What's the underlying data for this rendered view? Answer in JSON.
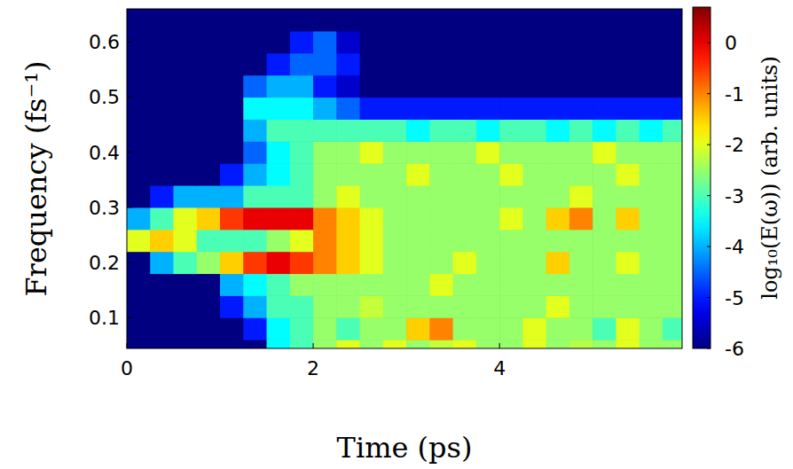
{
  "chart_data": {
    "type": "heatmap",
    "x_label": "Time (ps)",
    "y_label": "Frequency (fs⁻¹)",
    "xlim": [
      0,
      5.96
    ],
    "ylim": [
      0.044,
      0.66
    ],
    "xticks": [
      0,
      2,
      4
    ],
    "yticks": [
      0.1,
      0.2,
      0.3,
      0.4,
      0.5,
      0.6
    ],
    "x_bins": [
      0,
      0.25,
      0.5,
      0.75,
      1,
      1.25,
      1.5,
      1.75,
      2,
      2.25,
      2.5,
      2.75,
      3,
      3.25,
      3.5,
      3.75,
      4,
      4.25,
      4.5,
      4.75,
      5,
      5.25,
      5.5,
      5.75,
      6
    ],
    "y_bins": [
      0.02,
      0.06,
      0.1,
      0.14,
      0.18,
      0.22,
      0.26,
      0.3,
      0.34,
      0.38,
      0.42,
      0.46,
      0.5,
      0.54,
      0.58,
      0.62,
      0.66
    ],
    "values": [
      [
        -6,
        -6,
        -6,
        -6,
        -6,
        -6,
        -3.5,
        -3,
        -2.5,
        -2,
        -2.5,
        -2,
        -2.5,
        -2.2,
        -2,
        -2.5,
        -2.5,
        -2,
        -2.5,
        -2.3,
        -2.5,
        -2,
        -2.5,
        -2.5
      ],
      [
        -6,
        -6,
        -6,
        -6,
        -6,
        -5,
        -3.5,
        -3,
        -2.5,
        -3,
        -2.5,
        -2.5,
        -1.5,
        -1,
        -2.5,
        -2.5,
        -2.5,
        -2,
        -2.5,
        -2.5,
        -3,
        -2,
        -2.5,
        -3
      ],
      [
        -6,
        -6,
        -6,
        -6,
        -5,
        -4,
        -3,
        -3,
        -2.5,
        -2.5,
        -2.2,
        -2.5,
        -2.5,
        -2.5,
        -2.5,
        -2.5,
        -2.5,
        -2.5,
        -2,
        -2.5,
        -2.5,
        -2.5,
        -2.5,
        -2.5
      ],
      [
        -6,
        -6,
        -6,
        -6,
        -4,
        -3.5,
        -3,
        -2.5,
        -2.5,
        -2.5,
        -2.5,
        -2.5,
        -2.5,
        -2,
        -2.5,
        -2.5,
        -2.5,
        -2.5,
        -2.5,
        -2.5,
        -2.5,
        -2.5,
        -2.5,
        -2.5
      ],
      [
        -6,
        -4,
        -3,
        -2.5,
        -1.5,
        -0.5,
        0,
        -0.5,
        -1,
        -1.5,
        -2,
        -2.5,
        -2.5,
        -2.5,
        -2,
        -2.5,
        -2.5,
        -2.5,
        -1.5,
        -2.5,
        -2.5,
        -2,
        -2.5,
        -2.5
      ],
      [
        -2,
        -1.5,
        -2,
        -3,
        -3,
        -3,
        -2.5,
        -2,
        -1,
        -1.5,
        -2,
        -2.5,
        -2.5,
        -2.5,
        -2.5,
        -2.5,
        -2.5,
        -2.5,
        -2.5,
        -2.5,
        -2.5,
        -2.5,
        -2.5,
        -2.5
      ],
      [
        -4,
        -3,
        -2,
        -1.5,
        -0.5,
        0,
        0,
        0,
        -1,
        -1.5,
        -2,
        -2.5,
        -2.5,
        -2.5,
        -2.5,
        -2.5,
        -2,
        -2.5,
        -1.5,
        -1,
        -2.5,
        -1.5,
        -2.5,
        -2.5
      ],
      [
        -6,
        -5,
        -4,
        -4,
        -4,
        -3,
        -3,
        -3,
        -2.5,
        -2,
        -2.5,
        -2.5,
        -2.5,
        -2.5,
        -2.5,
        -2.5,
        -2.5,
        -2.5,
        -2.5,
        -2,
        -2.5,
        -2.5,
        -2.5,
        -2.5
      ],
      [
        -6,
        -6,
        -6,
        -6,
        -5,
        -4,
        -3.5,
        -3,
        -2.5,
        -2.5,
        -2.5,
        -2.5,
        -2,
        -2.5,
        -2.5,
        -2.5,
        -2,
        -2.5,
        -2.5,
        -2.5,
        -2.5,
        -2,
        -2.5,
        -2.5
      ],
      [
        -6,
        -6,
        -6,
        -6,
        -6,
        -4.5,
        -3.5,
        -3,
        -2.5,
        -2.5,
        -2,
        -2.5,
        -2.5,
        -2.5,
        -2.5,
        -2,
        -2.5,
        -2.5,
        -2.5,
        -2.5,
        -2,
        -2.5,
        -2.5,
        -2.5
      ],
      [
        -6,
        -6,
        -6,
        -6,
        -6,
        -4,
        -3,
        -3,
        -3,
        -3,
        -3,
        -3,
        -3.5,
        -3,
        -3,
        -3.5,
        -3,
        -3,
        -3.5,
        -3,
        -3.5,
        -3,
        -3.5,
        -3
      ],
      [
        -6,
        -6,
        -6,
        -6,
        -6,
        -3.5,
        -3.5,
        -3.5,
        -4,
        -4.5,
        -5,
        -5,
        -5,
        -5,
        -5,
        -5,
        -5,
        -5,
        -5,
        -5,
        -5,
        -5,
        -5,
        -5
      ],
      [
        -6,
        -6,
        -6,
        -6,
        -6,
        -4.5,
        -4,
        -4,
        -5,
        -5.5,
        -6,
        -6,
        -6,
        -6,
        -6,
        -6,
        -6,
        -6,
        -6,
        -6,
        -6,
        -6,
        -6,
        -6
      ],
      [
        -6,
        -6,
        -6,
        -6,
        -6,
        -6,
        -5,
        -4.5,
        -4.5,
        -5,
        -6,
        -6,
        -6,
        -6,
        -6,
        -6,
        -6,
        -6,
        -6,
        -6,
        -6,
        -6,
        -6,
        -6
      ],
      [
        -6,
        -6,
        -6,
        -6,
        -6,
        -6,
        -6,
        -5,
        -4.5,
        -5.5,
        -6,
        -6,
        -6,
        -6,
        -6,
        -6,
        -6,
        -6,
        -6,
        -6,
        -6,
        -6,
        -6,
        -6
      ],
      [
        -6,
        -6,
        -6,
        -6,
        -6,
        -6,
        -6,
        -6,
        -6,
        -6,
        -6,
        -6,
        -6,
        -6,
        -6,
        -6,
        -6,
        -6,
        -6,
        -6,
        -6,
        -6,
        -6,
        -6
      ]
    ],
    "colorbar_label": "log₁₀(E(ω)) (arb. units)",
    "colorbar_range": [
      -6,
      0.7
    ],
    "colorbar_ticks": [
      0,
      -1,
      -2,
      -3,
      -4,
      -5,
      -6
    ]
  }
}
